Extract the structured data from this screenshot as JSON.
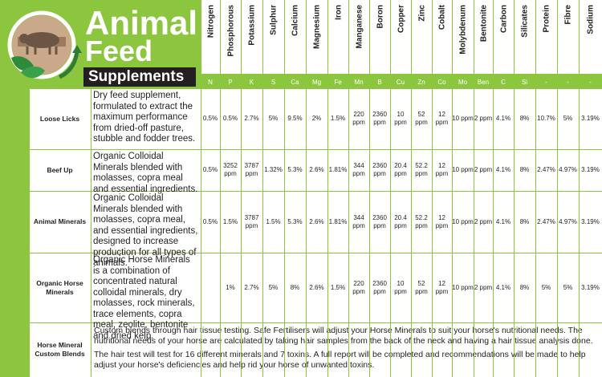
{
  "header": {
    "title_line1": "Animal",
    "title_line2": "Feed",
    "title_line3": "Supplements"
  },
  "columns": [
    {
      "name": "Nitrogen",
      "abbr": "N"
    },
    {
      "name": "Phosphorous",
      "abbr": "P"
    },
    {
      "name": "Potassium",
      "abbr": "K"
    },
    {
      "name": "Sulphur",
      "abbr": "S"
    },
    {
      "name": "Calcium",
      "abbr": "Ca"
    },
    {
      "name": "Magnesium",
      "abbr": "Mg"
    },
    {
      "name": "Iron",
      "abbr": "Fe"
    },
    {
      "name": "Manganese",
      "abbr": "Mn"
    },
    {
      "name": "Boron",
      "abbr": "B"
    },
    {
      "name": "Copper",
      "abbr": "Cu"
    },
    {
      "name": "Zinc",
      "abbr": "Zn"
    },
    {
      "name": "Cobalt",
      "abbr": "Co"
    },
    {
      "name": "Molybdenum",
      "abbr": "Mo"
    },
    {
      "name": "Bentonite",
      "abbr": "Ben"
    },
    {
      "name": "Carbon",
      "abbr": "C"
    },
    {
      "name": "Silicates",
      "abbr": "Si"
    },
    {
      "name": "Protein",
      "abbr": "-"
    },
    {
      "name": "Fibre",
      "abbr": "-"
    },
    {
      "name": "Sodium",
      "abbr": "-"
    }
  ],
  "products": [
    {
      "name": "Loose Licks",
      "description": "Dry feed supplement, formulated to extract the maximum performance from dried-off pasture, stubble and fodder trees.",
      "values": [
        "0.5%",
        "0.5%",
        "2.7%",
        "5%",
        "9.5%",
        "2%",
        "1.5%",
        "220 ppm",
        "2360 ppm",
        "10 ppm",
        "52 ppm",
        "12 ppm",
        "10 ppm",
        "2 ppm",
        "4.1%",
        "8%",
        "10.7%",
        "5%",
        "3.19%"
      ]
    },
    {
      "name": "Beef Up",
      "description": "Organic Colloidal Minerals blended with molasses, copra meal and essential ingredients.",
      "values": [
        "0.5%",
        "3252 ppm",
        "3787 ppm",
        "1.32%",
        "5.3%",
        "2.6%",
        "1.81%",
        "344 ppm",
        "2360 ppm",
        "20.4 ppm",
        "52.2 ppm",
        "12 ppm",
        "10 ppm",
        "2 ppm",
        "4.1%",
        "8%",
        "2.47%",
        "4.97%",
        "3.19%"
      ]
    },
    {
      "name": "Animal Minerals",
      "description": "Organic Colloidal Minerals blended with molasses, copra meal, and essential ingredients, designed to increase production for all types of animals.",
      "values": [
        "0.5%",
        "1.5%",
        "3787 ppm",
        "1.5%",
        "5.3%",
        "2.6%",
        "1.81%",
        "344 ppm",
        "2360 ppm",
        "20.4 ppm",
        "52.2 ppm",
        "12 ppm",
        "10 ppm",
        "2 ppm",
        "4.1%",
        "8%",
        "2.47%",
        "4.97%",
        "3.19%"
      ]
    },
    {
      "name": "Organic Horse Minerals",
      "description": "Organic Horse Minerals is a combination of concentrated natural colloidal minerals, dry molasses, rock minerals, trace elements, copra meal, zeolite, bentonite and dried kelp.",
      "values": [
        "",
        "1%",
        "2.7%",
        "5%",
        "8%",
        "2.6%",
        "1.5%",
        "220 ppm",
        "2360 ppm",
        "10 ppm",
        "52 ppm",
        "12 ppm",
        "10 ppm",
        "2 ppm",
        "4.1%",
        "8%",
        "5%",
        "5%",
        "3.19%"
      ]
    }
  ],
  "custom_row": {
    "name": "Horse Mineral Custom Blends",
    "paragraph1": "Custom blends through hair tissue testing. Safe Fertilisers will adjust your Horse Minerals to suit your horse's nutritional needs. The nutritional needs of your horse are calculated by taking hair samples from the back of the neck and having a hair tissue analysis done.",
    "paragraph2": "The hair test will test for 16 different minerals and 7 toxins. A full report will be completed and recommendations will be made to help adjust your horse's deficiencies and help rid your horse of unwanted toxins."
  },
  "colors": {
    "accent_green": "#8cc63f",
    "dark_label": "#231f20"
  },
  "icons": {
    "logo": "pig-leaf-arrow-icon"
  }
}
